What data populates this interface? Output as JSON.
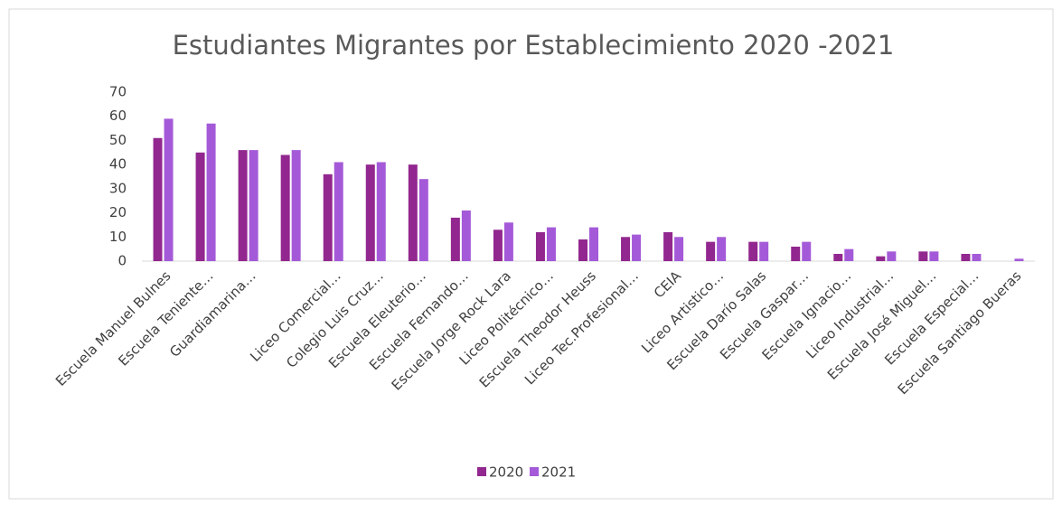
{
  "chart_data": {
    "type": "bar",
    "title": "Estudiantes Migrantes por Establecimiento 2020 -2021",
    "categories": [
      "Escuela Manuel Bulnes",
      "Escuela Teniente…",
      "Guardiamarina…",
      null,
      "Liceo Comercial…",
      "Colegio Luis Cruz…",
      "Escuela Eleuterio…",
      "Escuela Fernando…",
      "Escuela Jorge Rock Lara",
      "Liceo Politécnico…",
      "Escuela Theodor Heuss",
      "Liceo Tec.Profesional…",
      "CEIA",
      "Liceo Artistico…",
      "Escuela Darío Salas",
      "Escuela Gaspar…",
      "Escuela Ignacio…",
      "Liceo Industrial…",
      "Escuela José Miguel…",
      "Escuela Especial…",
      "Escuela Santiago Bueras"
    ],
    "series": [
      {
        "name": "2020",
        "color": "#92278f",
        "values": [
          51,
          45,
          46,
          44,
          36,
          40,
          40,
          18,
          13,
          12,
          9,
          10,
          12,
          8,
          8,
          6,
          3,
          2,
          4,
          3,
          0
        ]
      },
      {
        "name": "2021",
        "color": "#a45ad8",
        "values": [
          59,
          57,
          46,
          46,
          41,
          41,
          34,
          21,
          16,
          14,
          14,
          11,
          10,
          10,
          8,
          8,
          5,
          4,
          4,
          3,
          1
        ]
      }
    ],
    "ylim": [
      0,
      70
    ],
    "yticks": [
      0,
      10,
      20,
      30,
      40,
      50,
      60,
      70
    ],
    "grid": false,
    "legend": "bottom"
  }
}
